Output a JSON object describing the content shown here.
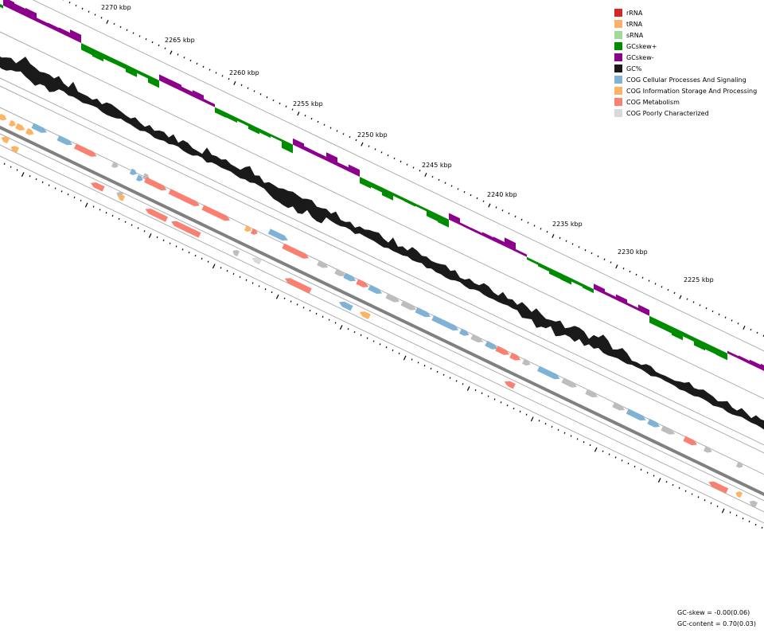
{
  "map": {
    "position_unit": "kbp",
    "ruler_ticks": [
      "2270 kbp",
      "2265 kbp",
      "2260 kbp",
      "2255 kbp",
      "2250 kbp",
      "2245 kbp",
      "2240 kbp",
      "2235 kbp",
      "2230 kbp",
      "2225 kbp"
    ],
    "colors": {
      "rRNA": "#d62728",
      "tRNA": "#fdae6b",
      "sRNA": "#a1d99b",
      "gcskew_plus": "#008c00",
      "gcskew_minus": "#8c008c",
      "gc_content": "#1a1a1a",
      "cog_cellular": "#7fb2d5",
      "cog_information": "#fdb462",
      "cog_metabolism": "#fa8072",
      "cog_poorly": "#d9d9d9",
      "cog_unknown_gray": "#bdbdbd",
      "track_line": "#9e9e9e",
      "backbone": "#808080"
    },
    "forward_features": [
      {
        "cat": "cog_information"
      },
      {
        "cat": "cog_information"
      },
      {
        "cat": "cog_information"
      },
      {
        "cat": "cog_information"
      },
      {
        "cat": "cog_cellular"
      },
      {
        "cat": "cog_cellular"
      },
      {
        "cat": "cog_metabolism"
      },
      {
        "cat": "cog_unknown_gray"
      },
      {
        "cat": "cog_cellular"
      },
      {
        "cat": "cog_cellular"
      },
      {
        "cat": "cog_unknown_gray"
      },
      {
        "cat": "cog_metabolism"
      },
      {
        "cat": "cog_metabolism"
      },
      {
        "cat": "cog_metabolism"
      },
      {
        "cat": "cog_information"
      },
      {
        "cat": "cog_metabolism"
      },
      {
        "cat": "cog_cellular"
      },
      {
        "cat": "cog_metabolism"
      },
      {
        "cat": "cog_unknown_gray"
      },
      {
        "cat": "cog_unknown_gray"
      },
      {
        "cat": "cog_cellular"
      },
      {
        "cat": "cog_metabolism"
      },
      {
        "cat": "cog_cellular"
      },
      {
        "cat": "cog_unknown_gray"
      },
      {
        "cat": "cog_unknown_gray"
      },
      {
        "cat": "cog_cellular"
      },
      {
        "cat": "cog_cellular"
      },
      {
        "cat": "cog_cellular"
      },
      {
        "cat": "cog_unknown_gray"
      },
      {
        "cat": "cog_cellular"
      },
      {
        "cat": "cog_metabolism"
      },
      {
        "cat": "cog_metabolism"
      },
      {
        "cat": "cog_unknown_gray"
      },
      {
        "cat": "cog_cellular"
      },
      {
        "cat": "cog_unknown_gray"
      },
      {
        "cat": "cog_unknown_gray"
      },
      {
        "cat": "cog_unknown_gray"
      },
      {
        "cat": "cog_cellular"
      },
      {
        "cat": "cog_cellular"
      },
      {
        "cat": "cog_unknown_gray"
      },
      {
        "cat": "cog_metabolism"
      },
      {
        "cat": "cog_unknown_gray"
      },
      {
        "cat": "cog_unknown_gray"
      }
    ],
    "reverse_features": [
      {
        "cat": "cog_information"
      },
      {
        "cat": "cog_information"
      },
      {
        "cat": "cog_metabolism"
      },
      {
        "cat": "cog_unknown_gray"
      },
      {
        "cat": "cog_information"
      },
      {
        "cat": "cog_metabolism"
      },
      {
        "cat": "cog_metabolism"
      },
      {
        "cat": "cog_unknown_gray"
      },
      {
        "cat": "cog_poorly"
      },
      {
        "cat": "cog_metabolism"
      },
      {
        "cat": "cog_cellular"
      },
      {
        "cat": "cog_information"
      },
      {
        "cat": "cog_metabolism"
      },
      {
        "cat": "cog_metabolism"
      },
      {
        "cat": "cog_information"
      },
      {
        "cat": "cog_unknown_gray"
      }
    ]
  },
  "legend": [
    {
      "label": "rRNA",
      "color": "#d62728"
    },
    {
      "label": "tRNA",
      "color": "#fdae6b"
    },
    {
      "label": "sRNA",
      "color": "#a1d99b"
    },
    {
      "label": "GCskew+",
      "color": "#008c00"
    },
    {
      "label": "GCskew-",
      "color": "#8c008c"
    },
    {
      "label": "GC%",
      "color": "#1a1a1a"
    },
    {
      "label": "COG Cellular Processes And Signaling",
      "color": "#7fb2d5"
    },
    {
      "label": "COG Information Storage And Processing",
      "color": "#fdb462"
    },
    {
      "label": "COG Metabolism",
      "color": "#fa8072"
    },
    {
      "label": "COG Poorly Characterized",
      "color": "#d9d9d9"
    }
  ],
  "stats": {
    "gc_skew": "GC-skew = -0.00(0.06)",
    "gc_content": "GC-content = 0.70(0.03)"
  }
}
